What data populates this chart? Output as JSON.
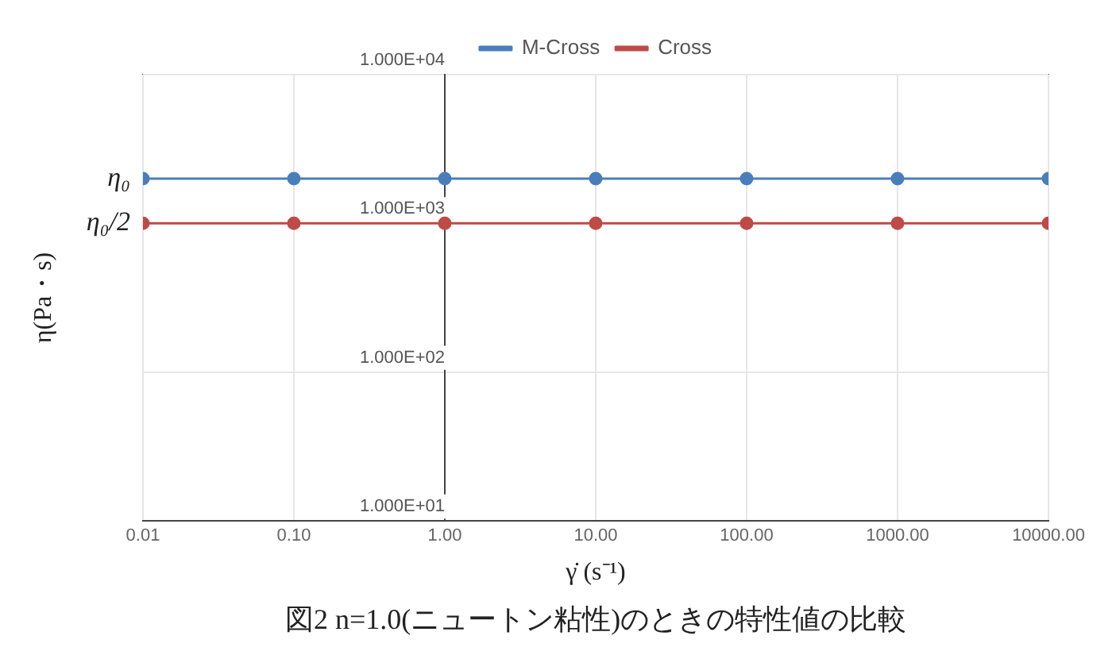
{
  "chart_data": {
    "type": "line",
    "title": "図2 n=1.0(ニュートン粘性)のときの特性値の比較",
    "xlabel": "γ̇ (s⁻¹)",
    "ylabel": "η(Pa・s)",
    "x": [
      0.01,
      0.1,
      1,
      10,
      100,
      1000,
      10000
    ],
    "series": [
      {
        "name": "M-Cross",
        "color": "#4a7ebb",
        "values": [
          2000,
          2000,
          2000,
          2000,
          2000,
          2000,
          2000
        ]
      },
      {
        "name": "Cross",
        "color": "#be4b48",
        "values": [
          1000,
          1000,
          1000,
          1000,
          1000,
          1000,
          1000
        ]
      }
    ],
    "log": "xy",
    "xlim": [
      0.01,
      10000
    ],
    "ylim": [
      10,
      10000
    ],
    "xticks": [
      {
        "value": 0.01,
        "label": "0.01"
      },
      {
        "value": 0.1,
        "label": "0.10"
      },
      {
        "value": 1,
        "label": "1.00"
      },
      {
        "value": 10,
        "label": "10.00"
      },
      {
        "value": 100,
        "label": "100.00"
      },
      {
        "value": 1000,
        "label": "1000.00"
      },
      {
        "value": 10000,
        "label": "10000.00"
      }
    ],
    "yticks": [
      {
        "value": 10,
        "label": "1.000E+01"
      },
      {
        "value": 100,
        "label": "1.000E+02"
      },
      {
        "value": 1000,
        "label": "1.000E+03"
      },
      {
        "value": 10000,
        "label": "1.000E+04"
      }
    ],
    "annotations": [
      "η₀",
      "η₀/2"
    ],
    "grid": true,
    "legend": "top",
    "marker": "circle",
    "line_style": "solid"
  }
}
